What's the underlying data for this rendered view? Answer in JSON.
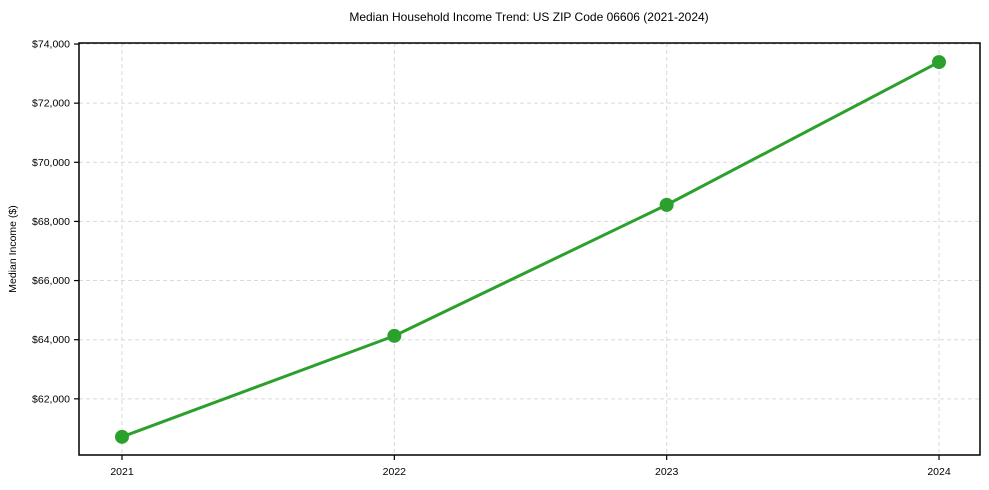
{
  "page": {
    "title": "Median Household Income Trend: US ZIP Code 06606 (2021-2024)"
  },
  "chart_data": {
    "type": "line",
    "title": "Median Household Income Trend: US ZIP Code 06606 (2021-2024)",
    "xlabel": "",
    "ylabel": "Median Income ($)",
    "categories": [
      "2021",
      "2022",
      "2023",
      "2024"
    ],
    "series": [
      {
        "name": "Median Household Income",
        "values": [
          60715,
          64130,
          68560,
          73390
        ],
        "color": "#2ca02c",
        "marker": "circle"
      }
    ],
    "ylim": [
      60100,
      74035
    ],
    "yticks": [
      62000,
      64000,
      66000,
      68000,
      70000,
      72000,
      74000
    ],
    "ytick_prefix": "$",
    "grid": true,
    "grid_color": "#d9d9d9",
    "grid_style": "dashed",
    "axis_color": "#000000",
    "background": "#ffffff",
    "legend": "none"
  }
}
